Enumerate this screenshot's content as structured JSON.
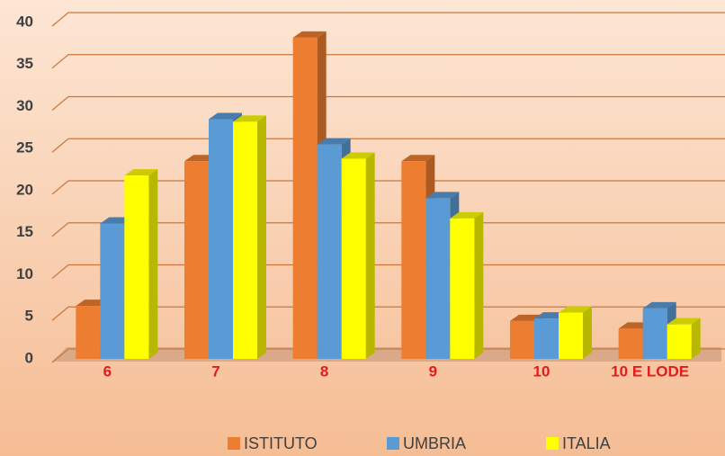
{
  "chart_data": {
    "type": "bar",
    "categories": [
      "6",
      "7",
      "8",
      "9",
      "10",
      "10 E LODE"
    ],
    "series": [
      {
        "name": "ISTITUTO",
        "color": "#ed7d31",
        "values": [
          6.3,
          23.5,
          38.2,
          23.5,
          4.5,
          3.6
        ]
      },
      {
        "name": "UMBRIA",
        "color": "#5b9bd5",
        "values": [
          16.1,
          28.5,
          25.5,
          19.1,
          4.8,
          6.0
        ]
      },
      {
        "name": "ITALIA",
        "color": "#ffff00",
        "values": [
          21.8,
          28.2,
          23.8,
          16.7,
          5.5,
          4.1
        ]
      }
    ],
    "ylim": [
      0,
      40
    ],
    "yticks": [
      0,
      5,
      10,
      15,
      20,
      25,
      30,
      35,
      40
    ],
    "grid": true,
    "legend": "bottom"
  }
}
